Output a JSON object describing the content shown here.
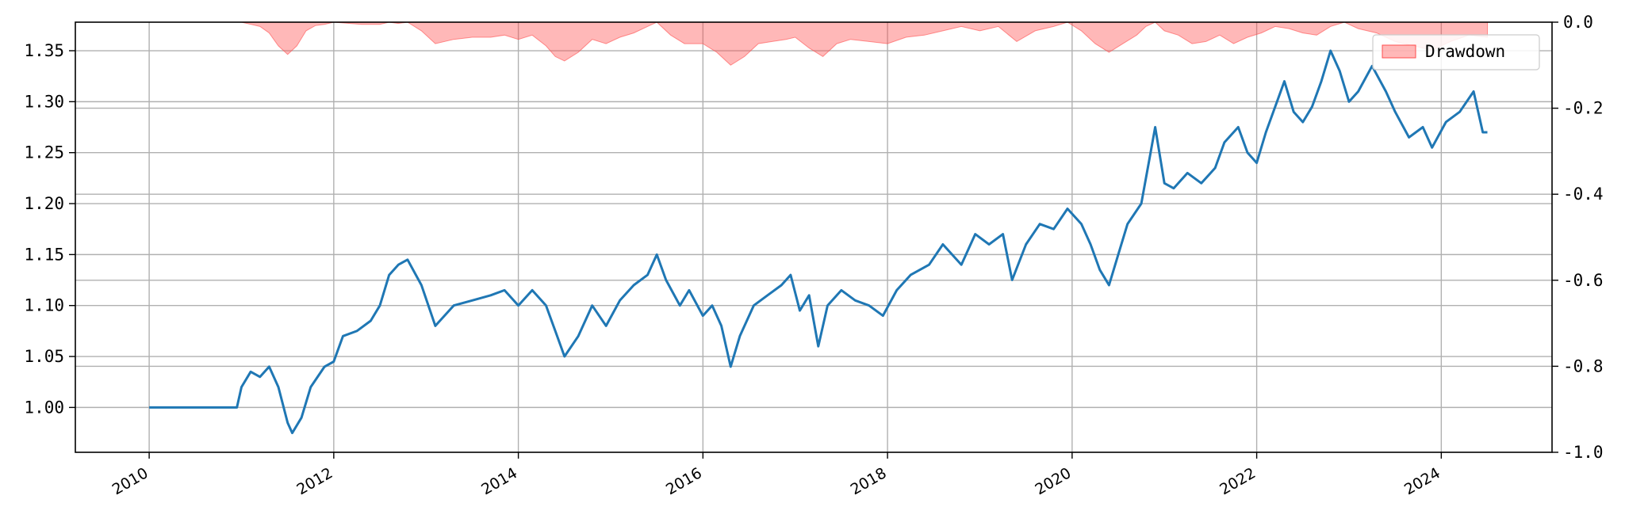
{
  "chart_data": {
    "type": "line",
    "grid": true,
    "legend_position": "top-right",
    "x_axis": {
      "range": [
        2009.2,
        2025.2
      ],
      "ticks": [
        2010,
        2012,
        2014,
        2016,
        2018,
        2020,
        2022,
        2024
      ]
    },
    "y_axis_left": {
      "range": [
        0.956,
        1.378
      ],
      "ticks": [
        1.0,
        1.05,
        1.1,
        1.15,
        1.2,
        1.25,
        1.3,
        1.35
      ],
      "tick_labels": [
        "1.00",
        "1.05",
        "1.10",
        "1.15",
        "1.20",
        "1.25",
        "1.30",
        "1.35"
      ]
    },
    "y_axis_right": {
      "range": [
        -1.0,
        0.0
      ],
      "ticks": [
        0.0,
        -0.2,
        -0.4,
        -0.6,
        -0.8,
        -1.0
      ],
      "tick_labels": [
        "0.0",
        "-0.2",
        "-0.4",
        "-0.6",
        "-0.8",
        "-1.0"
      ]
    },
    "series": [
      {
        "axis": "left",
        "color": "#1f77b4",
        "x": [
          2010.0,
          2010.95,
          2011.0,
          2011.1,
          2011.2,
          2011.3,
          2011.4,
          2011.5,
          2011.55,
          2011.65,
          2011.75,
          2011.9,
          2012.0,
          2012.1,
          2012.25,
          2012.4,
          2012.5,
          2012.6,
          2012.7,
          2012.8,
          2012.95,
          2013.1,
          2013.3,
          2013.5,
          2013.7,
          2013.85,
          2014.0,
          2014.15,
          2014.3,
          2014.4,
          2014.5,
          2014.65,
          2014.8,
          2014.95,
          2015.1,
          2015.25,
          2015.4,
          2015.5,
          2015.6,
          2015.75,
          2015.85,
          2016.0,
          2016.1,
          2016.2,
          2016.3,
          2016.4,
          2016.55,
          2016.7,
          2016.85,
          2016.95,
          2017.05,
          2017.15,
          2017.25,
          2017.35,
          2017.5,
          2017.65,
          2017.8,
          2017.95,
          2018.1,
          2018.25,
          2018.45,
          2018.6,
          2018.8,
          2018.95,
          2019.1,
          2019.25,
          2019.35,
          2019.5,
          2019.65,
          2019.8,
          2019.95,
          2020.1,
          2020.2,
          2020.3,
          2020.4,
          2020.5,
          2020.6,
          2020.75,
          2020.85,
          2020.9,
          2021.0,
          2021.1,
          2021.25,
          2021.4,
          2021.55,
          2021.65,
          2021.8,
          2021.9,
          2022.0,
          2022.1,
          2022.2,
          2022.3,
          2022.4,
          2022.5,
          2022.6,
          2022.7,
          2022.8,
          2022.9,
          2023.0,
          2023.1,
          2023.25,
          2023.4,
          2023.5,
          2023.65,
          2023.8,
          2023.9,
          2024.05,
          2024.2,
          2024.35,
          2024.45,
          2024.5
        ],
        "y": [
          1.0,
          1.0,
          1.02,
          1.035,
          1.03,
          1.04,
          1.02,
          0.985,
          0.975,
          0.99,
          1.02,
          1.04,
          1.045,
          1.07,
          1.075,
          1.085,
          1.1,
          1.13,
          1.14,
          1.145,
          1.12,
          1.08,
          1.1,
          1.105,
          1.11,
          1.115,
          1.1,
          1.115,
          1.1,
          1.075,
          1.05,
          1.07,
          1.1,
          1.08,
          1.105,
          1.12,
          1.13,
          1.15,
          1.125,
          1.1,
          1.115,
          1.09,
          1.1,
          1.08,
          1.04,
          1.07,
          1.1,
          1.11,
          1.12,
          1.13,
          1.095,
          1.11,
          1.06,
          1.1,
          1.115,
          1.105,
          1.1,
          1.09,
          1.115,
          1.13,
          1.14,
          1.16,
          1.14,
          1.17,
          1.16,
          1.17,
          1.125,
          1.16,
          1.18,
          1.175,
          1.195,
          1.18,
          1.16,
          1.135,
          1.12,
          1.15,
          1.18,
          1.2,
          1.25,
          1.275,
          1.22,
          1.215,
          1.23,
          1.22,
          1.235,
          1.26,
          1.275,
          1.25,
          1.24,
          1.27,
          1.295,
          1.32,
          1.29,
          1.28,
          1.295,
          1.32,
          1.35,
          1.33,
          1.3,
          1.31,
          1.335,
          1.31,
          1.29,
          1.265,
          1.275,
          1.255,
          1.28,
          1.29,
          1.31,
          1.27,
          1.27
        ]
      },
      {
        "name": "Drawdown",
        "axis": "right",
        "type": "area",
        "color": "#ff4d4d",
        "x": [
          2011.0,
          2011.1,
          2011.2,
          2011.3,
          2011.4,
          2011.5,
          2011.6,
          2011.7,
          2011.8,
          2011.9,
          2012.0,
          2012.3,
          2012.5,
          2012.6,
          2012.7,
          2012.8,
          2012.95,
          2013.1,
          2013.3,
          2013.5,
          2013.7,
          2013.85,
          2014.0,
          2014.15,
          2014.3,
          2014.4,
          2014.5,
          2014.65,
          2014.8,
          2014.95,
          2015.1,
          2015.25,
          2015.4,
          2015.5,
          2015.65,
          2015.8,
          2016.0,
          2016.15,
          2016.3,
          2016.45,
          2016.6,
          2016.75,
          2016.9,
          2017.0,
          2017.15,
          2017.3,
          2017.45,
          2017.6,
          2017.8,
          2018.0,
          2018.2,
          2018.4,
          2018.6,
          2018.8,
          2019.0,
          2019.2,
          2019.4,
          2019.6,
          2019.8,
          2019.95,
          2020.1,
          2020.25,
          2020.4,
          2020.55,
          2020.7,
          2020.8,
          2020.9,
          2021.0,
          2021.15,
          2021.3,
          2021.45,
          2021.6,
          2021.75,
          2021.9,
          2022.05,
          2022.2,
          2022.35,
          2022.5,
          2022.65,
          2022.8,
          2022.95,
          2023.1,
          2023.3,
          2023.5,
          2023.7,
          2023.9,
          2024.1,
          2024.3,
          2024.5
        ],
        "y": [
          0.0,
          -0.005,
          -0.01,
          -0.025,
          -0.055,
          -0.075,
          -0.055,
          -0.02,
          -0.008,
          -0.005,
          0.0,
          -0.005,
          -0.005,
          0.0,
          -0.003,
          0.0,
          -0.02,
          -0.05,
          -0.04,
          -0.035,
          -0.035,
          -0.03,
          -0.04,
          -0.03,
          -0.055,
          -0.08,
          -0.09,
          -0.07,
          -0.04,
          -0.05,
          -0.035,
          -0.025,
          -0.01,
          0.0,
          -0.03,
          -0.05,
          -0.05,
          -0.07,
          -0.1,
          -0.08,
          -0.05,
          -0.045,
          -0.04,
          -0.035,
          -0.06,
          -0.08,
          -0.05,
          -0.04,
          -0.045,
          -0.05,
          -0.035,
          -0.03,
          -0.02,
          -0.01,
          -0.02,
          -0.01,
          -0.045,
          -0.02,
          -0.01,
          0.0,
          -0.02,
          -0.05,
          -0.07,
          -0.05,
          -0.03,
          -0.01,
          0.0,
          -0.02,
          -0.03,
          -0.05,
          -0.045,
          -0.03,
          -0.05,
          -0.035,
          -0.025,
          -0.01,
          -0.015,
          -0.025,
          -0.03,
          -0.01,
          0.0,
          -0.015,
          -0.025,
          -0.045,
          -0.055,
          -0.065,
          -0.045,
          -0.03,
          -0.035
        ]
      }
    ]
  }
}
